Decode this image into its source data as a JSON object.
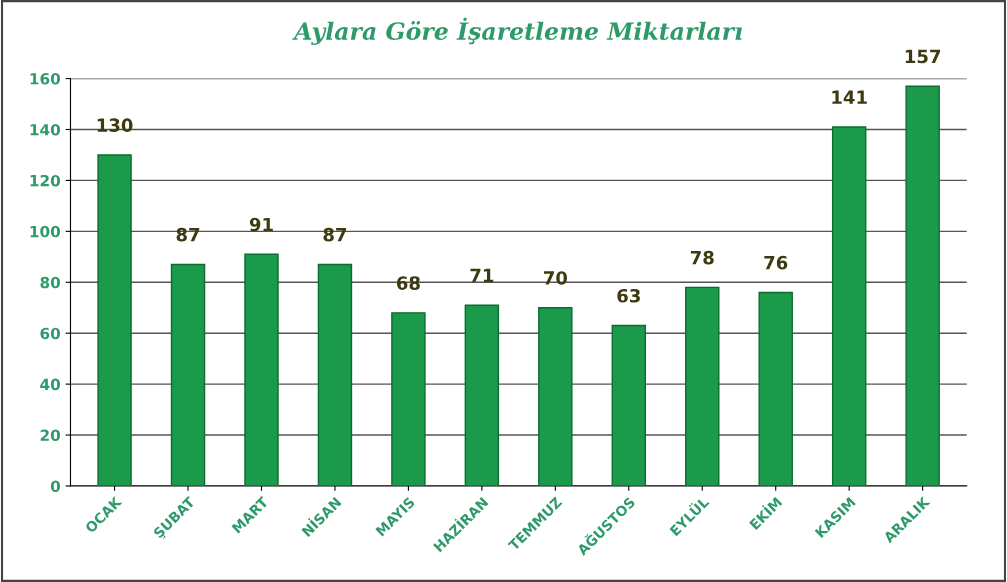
{
  "chart_data": {
    "type": "bar",
    "title": "Aylara Göre İşaretleme Miktarları",
    "categories": [
      "OCAK",
      "ŞUBAT",
      "MART",
      "NİSAN",
      "MAYIS",
      "HAZİRAN",
      "TEMMUZ",
      "AĞUSTOS",
      "EYLÜL",
      "EKİM",
      "KASIM",
      "ARALIK"
    ],
    "values": [
      130,
      87,
      91,
      87,
      68,
      71,
      70,
      63,
      78,
      76,
      141,
      157
    ],
    "color": "#1a9a4a",
    "ylim": [
      0,
      160
    ],
    "yticks": [
      0,
      20,
      40,
      60,
      80,
      100,
      120,
      140,
      160
    ],
    "grid": "y",
    "data_labels": true
  }
}
